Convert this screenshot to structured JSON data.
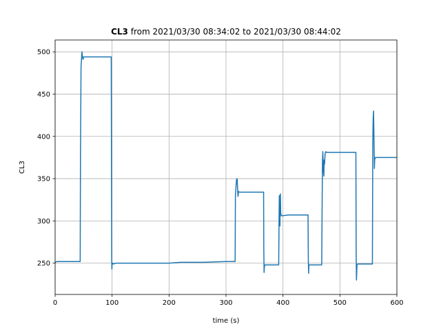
{
  "chart_data": {
    "type": "line",
    "title_bold": "CL3",
    "title_rest": " from 2021/03/30 08:34:02 to 2021/03/30 08:44:02",
    "xlabel": "time (s)",
    "ylabel": "CL3",
    "xlim": [
      0,
      600
    ],
    "ylim": [
      213,
      514
    ],
    "x_ticks": [
      0,
      100,
      200,
      300,
      400,
      500,
      600
    ],
    "y_ticks": [
      250,
      300,
      350,
      400,
      450,
      500
    ],
    "grid": true,
    "line_color": "#1f77b4",
    "series": [
      {
        "x": [
          0,
          3,
          44,
          44.5,
          45.5,
          46.5,
          47,
          48,
          49,
          50,
          60,
          70,
          80,
          90,
          98.5,
          98.9,
          99.3,
          99.6,
          100,
          101,
          103,
          106,
          130,
          160,
          200,
          220,
          260,
          300,
          316,
          316.5,
          317.5,
          318.5,
          319.5,
          321,
          321.6,
          322,
          323,
          325,
          340,
          366,
          366.3,
          366.8,
          367.3,
          368,
          375,
          390,
          392.5,
          393.2,
          393.6,
          394.2,
          394.7,
          395,
          395.5,
          396,
          397,
          410,
          430,
          444,
          444.5,
          445,
          445.5,
          446,
          447,
          455,
          468,
          469.3,
          470,
          471,
          471.8,
          472.3,
          473,
          474,
          474.8,
          475.4,
          476,
          478,
          490,
          505,
          528,
          528.5,
          529,
          530,
          531,
          535,
          550,
          557,
          557.7,
          558.3,
          559,
          559.7,
          560.5,
          561,
          562,
          566,
          580,
          600
        ],
        "y": [
          251,
          252,
          252,
          375,
          482,
          494,
          500,
          494,
          491,
          494,
          494,
          494,
          494,
          494,
          494,
          380,
          260,
          243,
          248,
          250,
          249,
          250,
          250,
          250,
          250,
          251,
          251,
          252,
          252,
          330,
          340,
          349,
          350,
          329,
          333,
          335,
          334,
          334,
          334,
          334,
          270,
          239,
          245,
          248,
          248,
          248,
          248,
          310,
          330,
          300,
          294,
          320,
          332,
          310,
          306,
          307,
          307,
          307,
          255,
          238,
          248,
          248,
          248,
          248,
          248,
          370,
          382,
          358,
          353,
          372,
          367,
          380,
          381,
          382,
          381,
          381,
          381,
          381,
          381,
          260,
          230,
          248,
          249,
          249,
          249,
          249,
          395,
          420,
          430,
          400,
          362,
          372,
          375,
          375,
          375,
          375
        ]
      }
    ]
  }
}
